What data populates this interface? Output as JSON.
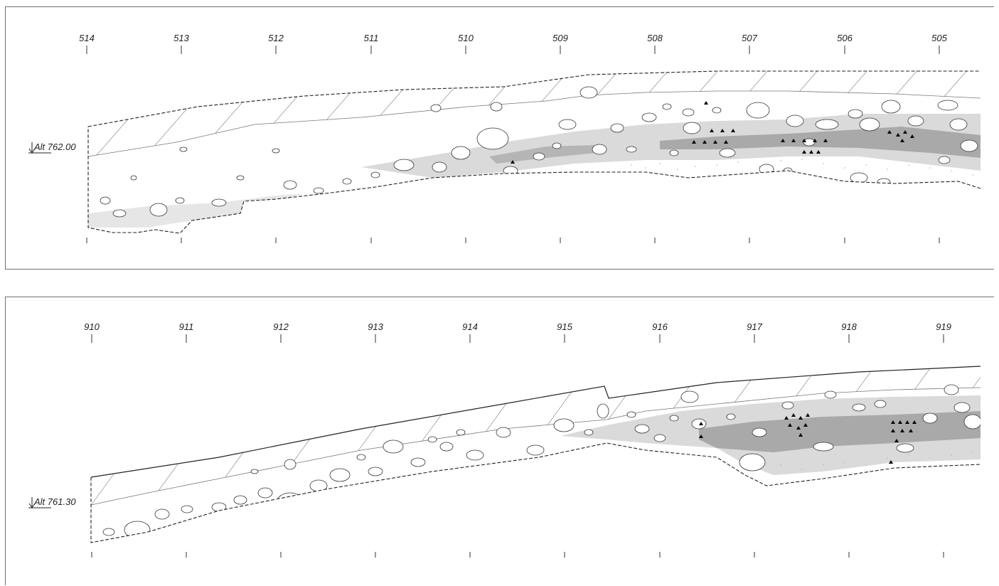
{
  "sections": [
    {
      "id": "top",
      "grid_labels": [
        "514",
        "513",
        "512",
        "511",
        "510",
        "509",
        "508",
        "507",
        "506",
        "505"
      ],
      "altitude_label": "Alt 762.00"
    },
    {
      "id": "bottom",
      "grid_labels": [
        "910",
        "911",
        "912",
        "913",
        "914",
        "915",
        "916",
        "917",
        "918",
        "919"
      ],
      "altitude_label": "Alt 761.30"
    }
  ],
  "colors": {
    "frame": "#6f6f6f",
    "outline": "#222222",
    "layer_light": "#dadada",
    "layer_dark": "#a9a9a9",
    "hatch": "#9a9a9a",
    "finds": "#000000"
  }
}
